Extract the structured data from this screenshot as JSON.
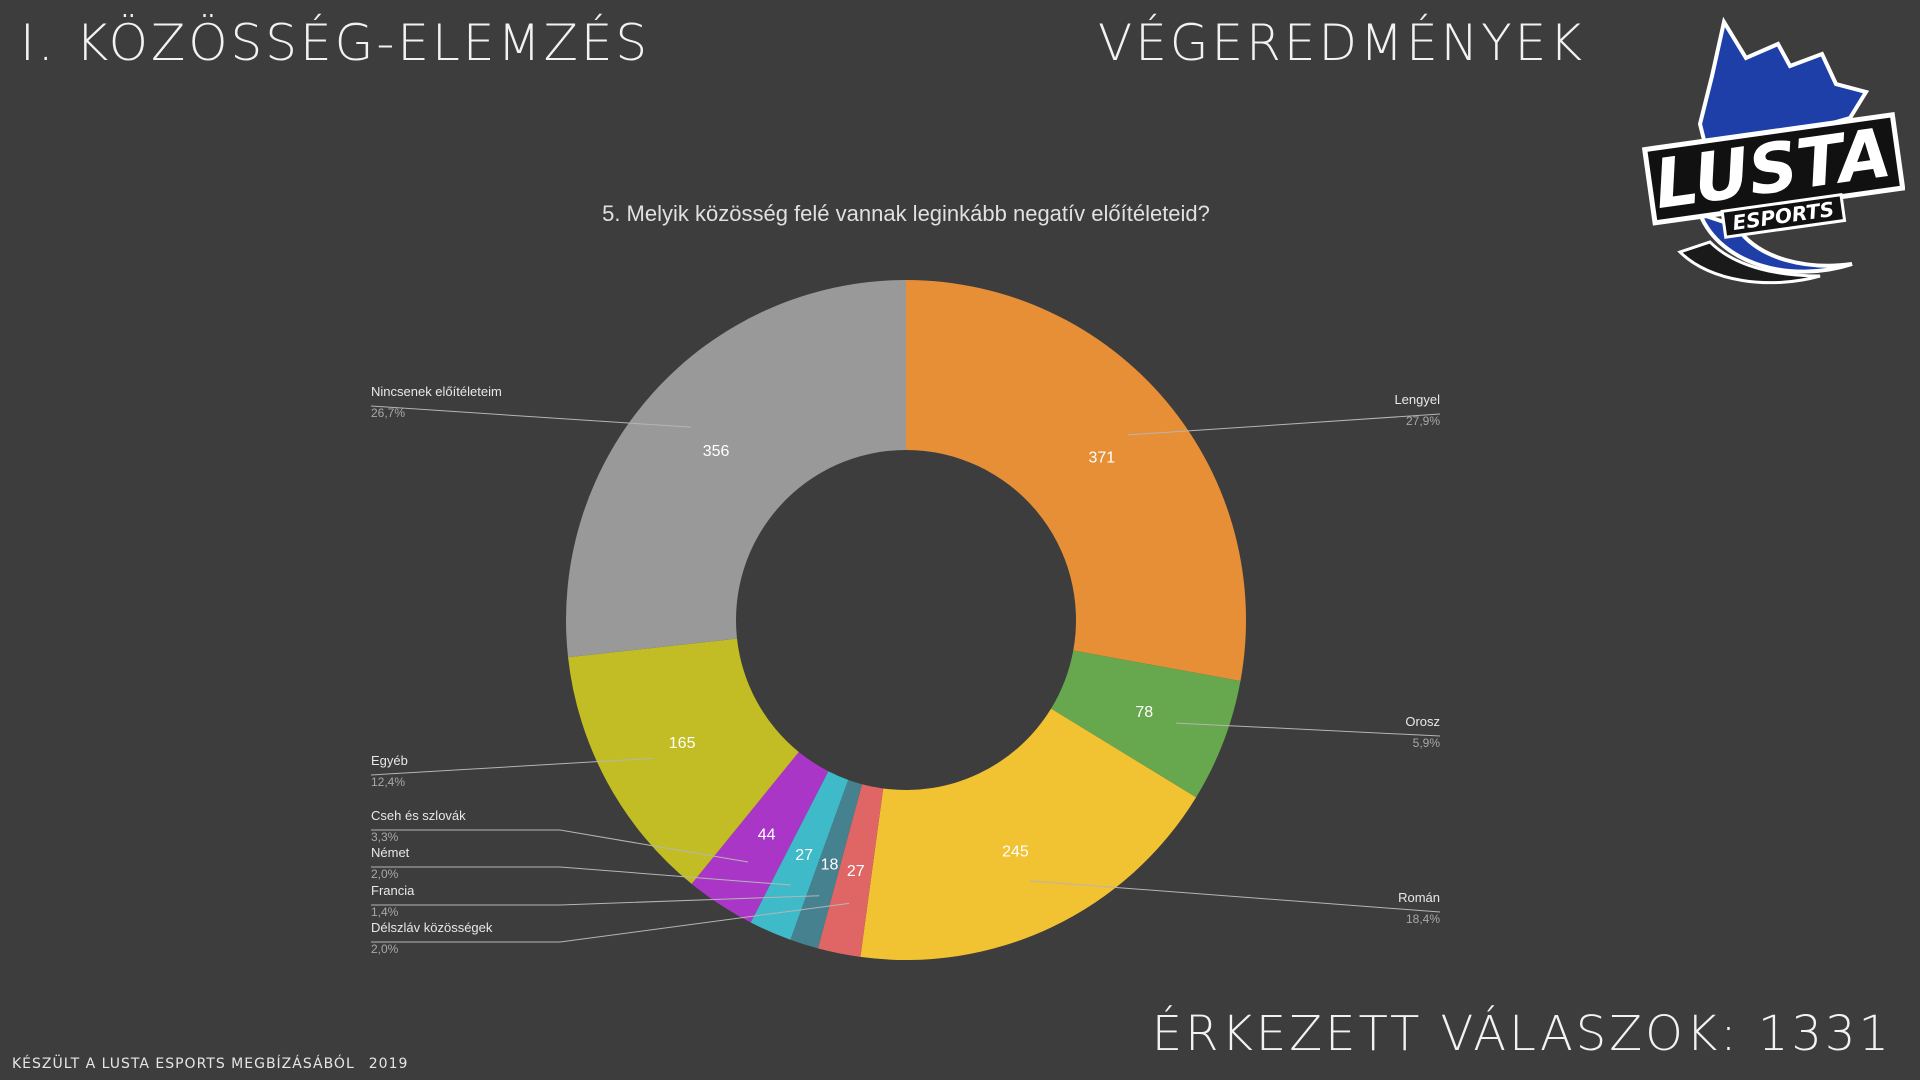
{
  "header": {
    "section_title": "I. KÖZÖSSÉG-ELEMZÉS",
    "results_title": "VÉGEREDMÉNYEK"
  },
  "logo": {
    "main_text": "LUSTA",
    "sub_text": "ESPORTS"
  },
  "chart_data": {
    "type": "pie",
    "variant": "donut",
    "title": "5. Melyik közösség felé vannak leginkább negatív előítéleteid?",
    "slices": [
      {
        "label": "Lengyel",
        "value": 371,
        "percent": "27,9%",
        "color": "#e68f37"
      },
      {
        "label": "Orosz",
        "value": 78,
        "percent": "5,9%",
        "color": "#67a74d"
      },
      {
        "label": "Román",
        "value": 245,
        "percent": "18,4%",
        "color": "#f1c232"
      },
      {
        "label": "Délszláv közösségek",
        "value": 27,
        "percent": "2,0%",
        "color": "#e06666"
      },
      {
        "label": "Francia",
        "value": 18,
        "percent": "1,4%",
        "color": "#45818e"
      },
      {
        "label": "Német",
        "value": 27,
        "percent": "2,0%",
        "color": "#3fbac9"
      },
      {
        "label": "Cseh és szlovák",
        "value": 44,
        "percent": "3,3%",
        "color": "#aa36c8"
      },
      {
        "label": "Egyéb",
        "value": 165,
        "percent": "12,4%",
        "color": "#c2bd24"
      },
      {
        "label": "Nincsenek előítéleteim",
        "value": 356,
        "percent": "26,7%",
        "color": "#999999"
      }
    ],
    "legend": "outside-labels"
  },
  "summary": {
    "responses_label": "ÉRKEZETT VÁLASZOK: 1331"
  },
  "footer": {
    "credit": "KÉSZÜLT A LUSTA ESPORTS MEGBÍZÁSÁBÓL",
    "year": "2019"
  }
}
